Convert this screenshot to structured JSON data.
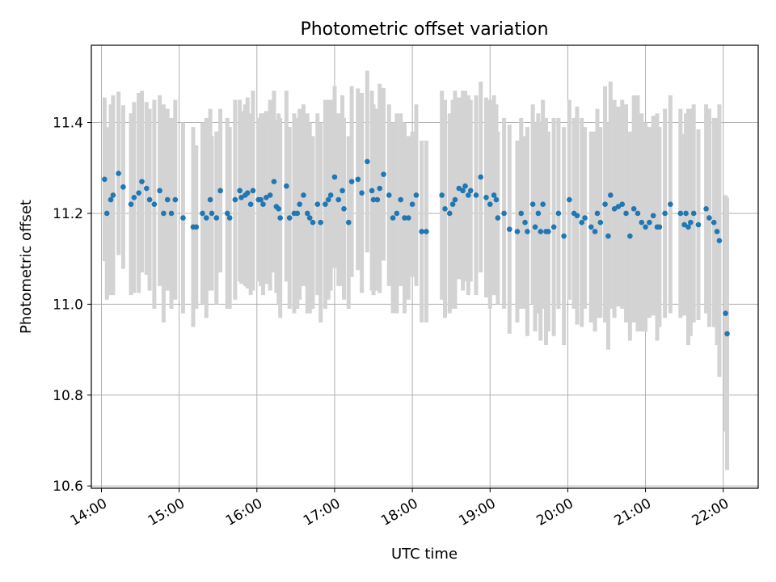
{
  "chart_data": {
    "type": "scatter",
    "title": "Photometric offset variation",
    "xlabel": "UTC time",
    "ylabel": "Photometric offset",
    "x_unit": "hours UTC",
    "xlim": [
      13.87,
      22.45
    ],
    "ylim": [
      10.595,
      11.57
    ],
    "x_ticks": [
      "14:00",
      "15:00",
      "16:00",
      "17:00",
      "18:00",
      "19:00",
      "20:00",
      "21:00",
      "22:00"
    ],
    "y_ticks": [
      "10.6",
      "10.8",
      "11.0",
      "11.2",
      "11.4"
    ],
    "grid": true,
    "marker_color": "#1f77b4",
    "errorbar_color": "#d3d3d3",
    "series": [
      {
        "x": [
          14.04,
          14.07,
          14.12,
          14.15,
          14.22,
          14.28,
          14.38,
          14.42,
          14.48,
          14.52,
          14.58,
          14.62,
          14.68,
          14.75,
          14.8,
          14.85,
          14.9,
          14.95,
          15.05,
          15.18,
          15.22,
          15.3,
          15.35,
          15.4,
          15.42,
          15.48,
          15.53,
          15.62,
          15.65,
          15.72,
          15.78,
          15.8,
          15.85,
          15.88,
          15.92,
          15.95,
          16.02,
          16.05,
          16.08,
          16.12,
          16.17,
          16.22,
          16.25,
          16.28,
          16.3,
          16.38,
          16.42,
          16.48,
          16.52,
          16.55,
          16.6,
          16.65,
          16.68,
          16.72,
          16.78,
          16.82,
          16.88,
          16.92,
          16.95,
          17.0,
          17.05,
          17.1,
          17.12,
          17.18,
          17.22,
          17.3,
          17.35,
          17.42,
          17.48,
          17.5,
          17.55,
          17.58,
          17.63,
          17.7,
          17.75,
          17.8,
          17.85,
          17.9,
          17.95,
          18.0,
          18.05,
          18.12,
          18.18,
          18.38,
          18.42,
          18.48,
          18.52,
          18.55,
          18.6,
          18.65,
          18.68,
          18.72,
          18.75,
          18.82,
          18.88,
          18.95,
          19.0,
          19.05,
          19.08,
          19.1,
          19.18,
          19.25,
          19.35,
          19.4,
          19.45,
          19.48,
          19.55,
          19.58,
          19.62,
          19.65,
          19.68,
          19.72,
          19.75,
          19.82,
          19.88,
          19.95,
          20.02,
          20.08,
          20.12,
          20.18,
          20.22,
          20.3,
          20.35,
          20.38,
          20.42,
          20.48,
          20.52,
          20.55,
          20.6,
          20.65,
          20.7,
          20.75,
          20.8,
          20.85,
          20.9,
          20.95,
          21.0,
          21.05,
          21.1,
          21.15,
          21.18,
          21.25,
          21.32,
          21.45,
          21.5,
          21.52,
          21.55,
          21.58,
          21.62,
          21.68,
          21.78,
          21.82,
          21.88,
          21.92,
          21.95,
          22.03,
          22.05
        ],
        "y": [
          11.275,
          11.2,
          11.23,
          11.24,
          11.288,
          11.258,
          11.22,
          11.235,
          11.245,
          11.27,
          11.255,
          11.23,
          11.22,
          11.25,
          11.2,
          11.23,
          11.2,
          11.23,
          11.19,
          11.17,
          11.17,
          11.2,
          11.19,
          11.23,
          11.2,
          11.19,
          11.25,
          11.2,
          11.19,
          11.23,
          11.25,
          11.235,
          11.24,
          11.245,
          11.22,
          11.25,
          11.23,
          11.23,
          11.22,
          11.235,
          11.24,
          11.27,
          11.215,
          11.21,
          11.19,
          11.26,
          11.19,
          11.2,
          11.2,
          11.22,
          11.24,
          11.2,
          11.19,
          11.18,
          11.22,
          11.18,
          11.22,
          11.23,
          11.24,
          11.28,
          11.23,
          11.25,
          11.21,
          11.18,
          11.27,
          11.275,
          11.245,
          11.314,
          11.25,
          11.23,
          11.23,
          11.255,
          11.286,
          11.24,
          11.19,
          11.2,
          11.23,
          11.19,
          11.19,
          11.22,
          11.24,
          11.16,
          11.16,
          11.24,
          11.21,
          11.2,
          11.22,
          11.23,
          11.255,
          11.25,
          11.26,
          11.24,
          11.25,
          11.24,
          11.28,
          11.235,
          11.22,
          11.24,
          11.23,
          11.19,
          11.2,
          11.165,
          11.16,
          11.2,
          11.18,
          11.16,
          11.22,
          11.17,
          11.2,
          11.16,
          11.22,
          11.16,
          11.16,
          11.17,
          11.2,
          11.15,
          11.23,
          11.2,
          11.195,
          11.18,
          11.19,
          11.17,
          11.16,
          11.2,
          11.18,
          11.22,
          11.15,
          11.24,
          11.21,
          11.215,
          11.22,
          11.2,
          11.15,
          11.21,
          11.2,
          11.18,
          11.17,
          11.18,
          11.195,
          11.17,
          11.17,
          11.2,
          11.22,
          11.2,
          11.175,
          11.2,
          11.17,
          11.18,
          11.2,
          11.175,
          11.21,
          11.19,
          11.18,
          11.16,
          11.14,
          10.98,
          10.935
        ],
        "yerr": [
          0.18,
          0.19,
          0.21,
          0.22,
          0.18,
          0.18,
          0.2,
          0.21,
          0.22,
          0.2,
          0.19,
          0.2,
          0.23,
          0.21,
          0.24,
          0.2,
          0.21,
          0.22,
          0.21,
          0.22,
          0.18,
          0.2,
          0.22,
          0.2,
          0.17,
          0.19,
          0.18,
          0.21,
          0.2,
          0.22,
          0.2,
          0.19,
          0.2,
          0.21,
          0.2,
          0.22,
          0.18,
          0.19,
          0.2,
          0.19,
          0.21,
          0.2,
          0.19,
          0.21,
          0.22,
          0.21,
          0.2,
          0.22,
          0.21,
          0.21,
          0.2,
          0.22,
          0.21,
          0.19,
          0.2,
          0.22,
          0.23,
          0.22,
          0.21,
          0.2,
          0.19,
          0.21,
          0.2,
          0.19,
          0.21,
          0.2,
          0.22,
          0.2,
          0.22,
          0.21,
          0.2,
          0.23,
          0.19,
          0.2,
          0.21,
          0.22,
          0.19,
          0.21,
          0.18,
          0.16,
          0.2,
          0.2,
          0.2,
          0.23,
          0.24,
          0.22,
          0.23,
          0.24,
          0.2,
          0.22,
          0.21,
          0.22,
          0.2,
          0.22,
          0.21,
          0.22,
          0.23,
          0.22,
          0.21,
          0.19,
          0.21,
          0.23,
          0.2,
          0.21,
          0.19,
          0.23,
          0.22,
          0.23,
          0.22,
          0.24,
          0.23,
          0.25,
          0.22,
          0.24,
          0.21,
          0.24,
          0.22,
          0.21,
          0.24,
          0.23,
          0.2,
          0.21,
          0.22,
          0.23,
          0.21,
          0.26,
          0.25,
          0.25,
          0.24,
          0.22,
          0.23,
          0.24,
          0.23,
          0.25,
          0.26,
          0.24,
          0.23,
          0.21,
          0.22,
          0.25,
          0.22,
          0.23,
          0.24,
          0.23,
          0.2,
          0.22,
          0.26,
          0.25,
          0.24,
          0.21,
          0.23,
          0.24,
          0.23,
          0.25,
          0.3,
          0.26,
          0.3
        ]
      }
    ]
  }
}
